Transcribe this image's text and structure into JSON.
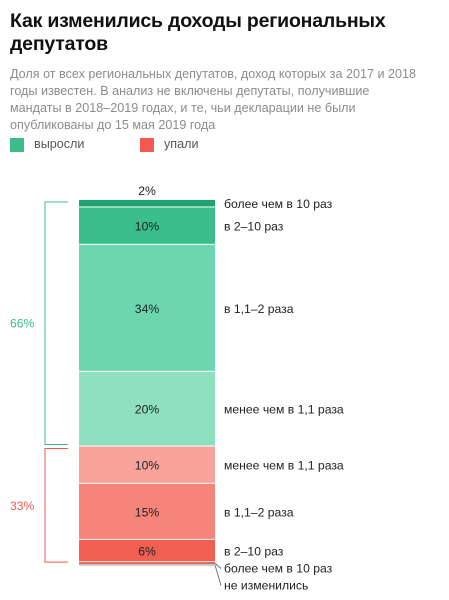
{
  "title": "Как изменились доходы региональных депутатов",
  "subtitle": "Доля от всех региональных депутатов, доход которых за 2017 и 2018 годы известен. В анализ не включены депутаты, получившие мандаты в 2018–2019 годах, и те, чьи декларации не были опубликованы до 15 мая 2019 года",
  "legend": [
    {
      "label": "выросли",
      "color": "#3cbd8c"
    },
    {
      "label": "упали",
      "color": "#f25a4f"
    }
  ],
  "chart_data": {
    "type": "bar",
    "stacked": true,
    "segments": [
      {
        "group": "grew",
        "value": 2,
        "value_label": "2%",
        "category": "более чем в 10 раз",
        "color": "#20a271"
      },
      {
        "group": "grew",
        "value": 10,
        "value_label": "10%",
        "category": "в 2–10 раз",
        "color": "#3cbd8c"
      },
      {
        "group": "grew",
        "value": 34,
        "value_label": "34%",
        "category": "в 1,1–2 раза",
        "color": "#6dd6b0"
      },
      {
        "group": "grew",
        "value": 20,
        "value_label": "20%",
        "category": "менее чем в 1,1 раза",
        "color": "#8ee0c1"
      },
      {
        "group": "fell",
        "value": 10,
        "value_label": "10%",
        "category": "менее чем в 1,1 раза",
        "color": "#f8a39a"
      },
      {
        "group": "fell",
        "value": 15,
        "value_label": "15%",
        "category": "в 1,1–2 раза",
        "color": "#f5857a"
      },
      {
        "group": "fell",
        "value": 6,
        "value_label": "6%",
        "category": "в 2–10 раз",
        "color": "#f05f52"
      },
      {
        "group": "fell",
        "value": 0.5,
        "value_label": "",
        "category": "более чем в 10 раз",
        "color": "#e03a2e"
      },
      {
        "group": "none",
        "value": 0.5,
        "value_label": "",
        "category": "не изменились",
        "color": "#b8b8b8"
      }
    ],
    "group_totals": [
      {
        "group": "grew",
        "label": "66%",
        "color": "#3cbd8c"
      },
      {
        "group": "fell",
        "label": "33%",
        "color": "#f25a4f"
      }
    ]
  }
}
